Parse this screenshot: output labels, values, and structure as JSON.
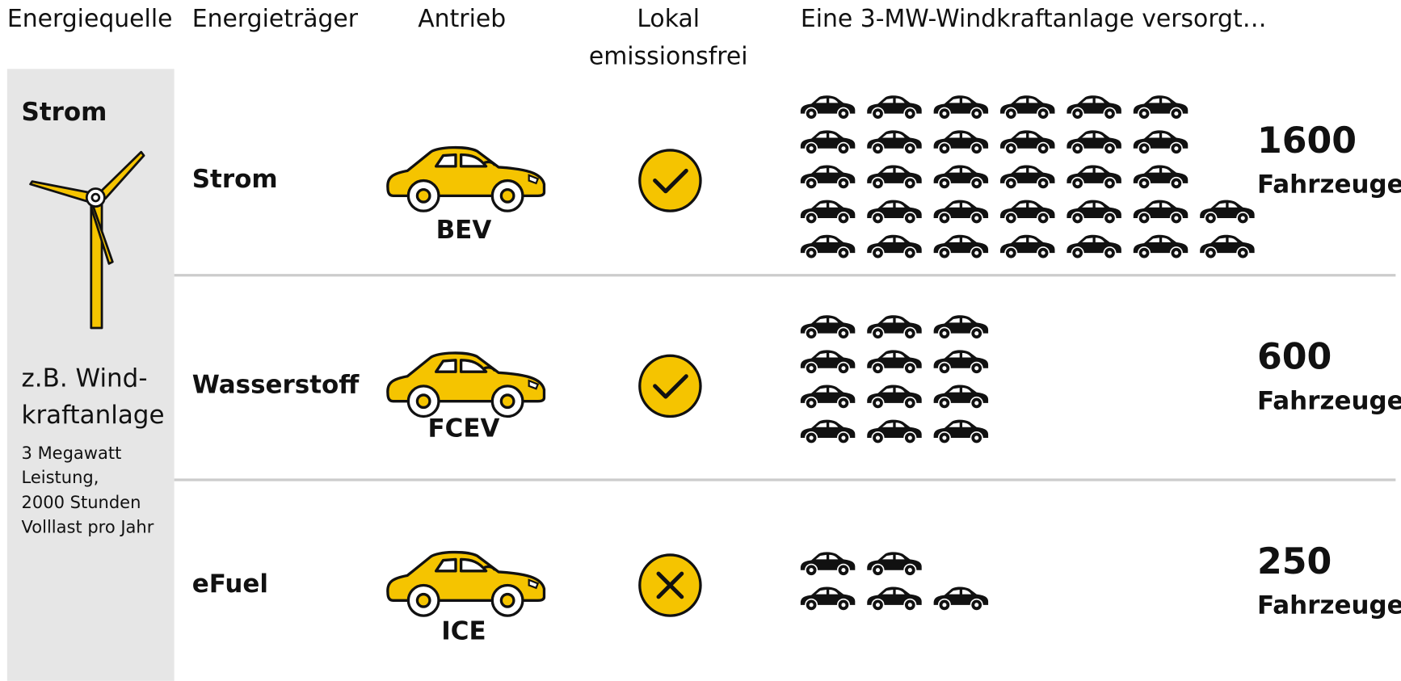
{
  "headers": {
    "source": "Energiequelle",
    "carrier": "Energieträger",
    "drive": "Antrieb",
    "emission_free": [
      "Lokal",
      "emissionsfrei"
    ],
    "supply": "Eine 3-MW-Windkraftanlage versorgt…"
  },
  "source_panel": {
    "title": "Strom",
    "example": [
      "z.B. Wind-",
      "kraftanlage"
    ],
    "details": [
      "3 Megawatt",
      "Leistung,",
      "2000 Stunden",
      "Volllast pro Jahr"
    ]
  },
  "rows": [
    {
      "carrier": "Strom",
      "drive": "BEV",
      "local_emission_free": true,
      "vehicles": 1600,
      "unit": "Fahrzeuge"
    },
    {
      "carrier": "Wasserstoff",
      "drive": "FCEV",
      "local_emission_free": true,
      "vehicles": 600,
      "unit": "Fahrzeuge"
    },
    {
      "carrier": "eFuel",
      "drive": "ICE",
      "local_emission_free": false,
      "vehicles": 250,
      "unit": "Fahrzeuge"
    }
  ]
}
